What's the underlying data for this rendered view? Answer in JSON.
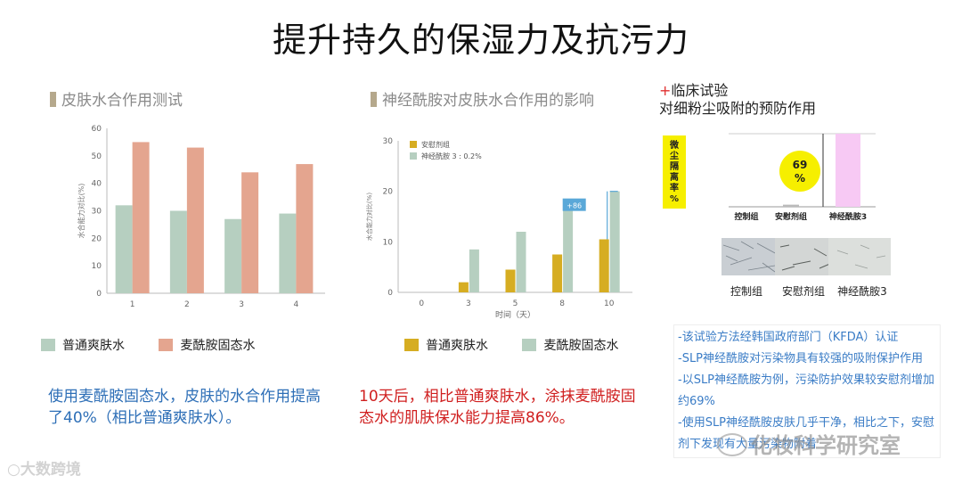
{
  "page": {
    "title": "提升持久的保湿力及抗污力",
    "watermark_left": "大数跨境",
    "watermark_right": "化妆科学研究室"
  },
  "colors": {
    "green": "#b6cfc0",
    "salmon": "#e4a58f",
    "gold": "#d6ad22",
    "blue_text": "#2e6fb7",
    "red_text": "#d02020"
  },
  "chart_data": [
    {
      "type": "bar",
      "title": "皮肤水合作用测试",
      "ylabel": "水合能力对比(%)",
      "ylim": [
        0,
        60
      ],
      "yticks": [
        "0",
        "10",
        "20",
        "30",
        "40",
        "50",
        "60"
      ],
      "categories": [
        "1",
        "2",
        "3",
        "4"
      ],
      "series": [
        {
          "name": "普通爽肤水",
          "values": [
            32,
            30,
            27,
            29
          ]
        },
        {
          "name": "麦酰胺固态水",
          "values": [
            55,
            53,
            44,
            47
          ]
        }
      ],
      "legend": [
        "普通爽肤水",
        "麦酰胺固态水"
      ],
      "caption": "使用麦酰胺固态水，皮肤的水合作用提高了40%（相比普通爽肤水）。"
    },
    {
      "type": "bar",
      "title": "神经酰胺对皮肤水合作用的影响",
      "ylabel": "水合能力对比(%)",
      "xlabel": "时间（天）",
      "ylim": [
        0,
        30
      ],
      "yticks": [
        "0",
        "10",
        "20",
        "30"
      ],
      "categories": [
        "0",
        "3",
        "5",
        "8",
        "10"
      ],
      "series": [
        {
          "name": "安慰剂组",
          "values": [
            0,
            2,
            4.5,
            7.5,
            10.5
          ]
        },
        {
          "name": "神经酰胺 3 : 0.2%",
          "values": [
            0,
            8.5,
            12,
            17.5,
            20
          ]
        }
      ],
      "inner_legend": [
        "安慰剂组",
        "神经酰胺 3 : 0.2%"
      ],
      "annotation": "+86",
      "legend": [
        "普通爽肤水",
        "麦酰胺固态水"
      ],
      "caption": "10天后，相比普通爽肤水，涂抹麦酰胺固态水的肌肤保水能力提高86%。"
    },
    {
      "type": "bar",
      "title": "临床试验",
      "subtitle": "对细粉尘吸附的预防作用",
      "ylabel": "微尘隔离率%",
      "categories": [
        "控制组",
        "安慰剂组",
        "神经酰胺3"
      ],
      "values": [
        0,
        2,
        69
      ],
      "annotation": "69\n%",
      "annotation_lines": [
        "69",
        "%"
      ]
    }
  ],
  "clinical": {
    "plus": "+",
    "title": "临床试验",
    "subtitle": "对细粉尘吸附的预防作用",
    "ylabel_chars": [
      "微",
      "尘",
      "隔",
      "离",
      "率",
      "%"
    ],
    "bar_labels": [
      "控制组",
      "安慰剂组",
      "神经酰胺3"
    ],
    "image_labels": [
      "控制组",
      "安慰剂组",
      "神经酰胺3"
    ],
    "notes": [
      "-该试验方法经韩国政府部门（KFDA）认证",
      "-SLP神经酰胺对污染物具有较强的吸附保护作用",
      "-以SLP神经酰胺为例，污染防护效果较安慰剂增加约69%",
      "-使用SLP神经酰胺皮肤几乎干净，相比之下，安慰剂下发现有大量污染物附着"
    ]
  }
}
